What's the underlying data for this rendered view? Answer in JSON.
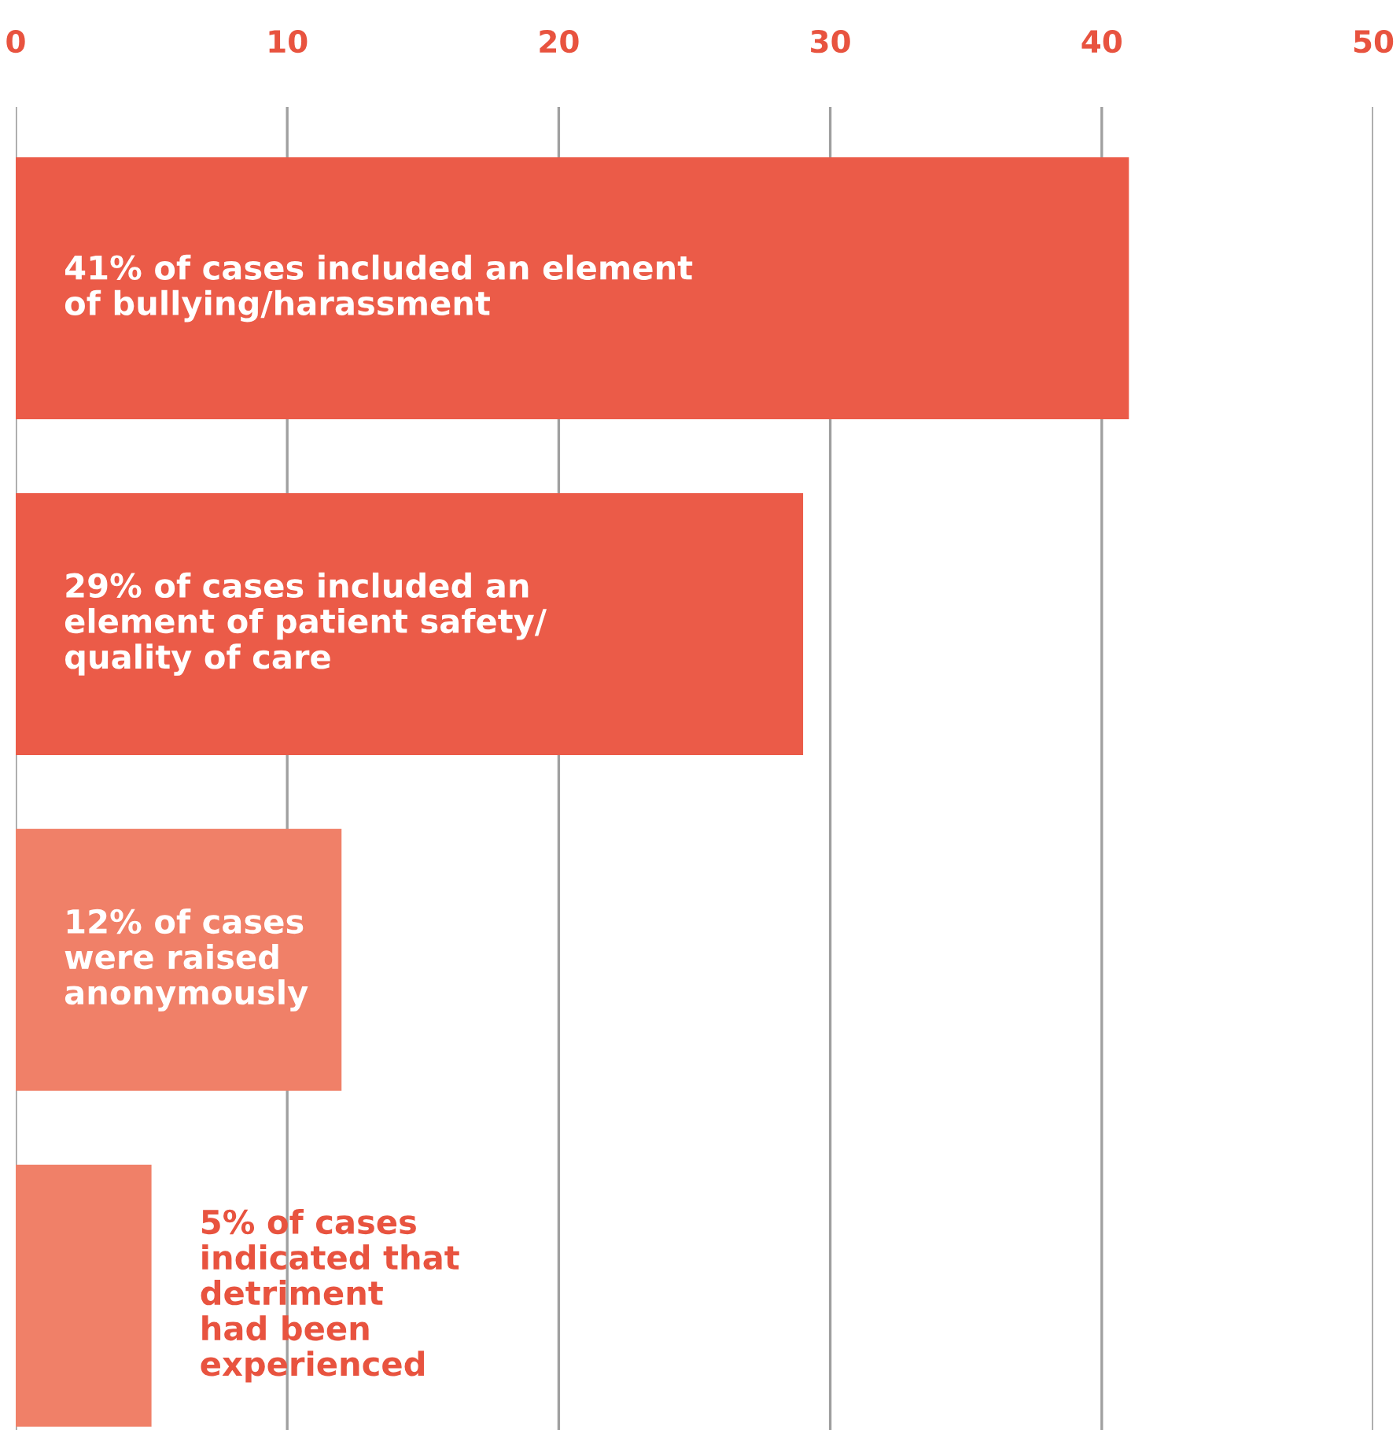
{
  "chart_data": {
    "type": "bar",
    "orientation": "horizontal",
    "categories": [
      "41% of cases included an element\nof bullying/harassment",
      "29% of cases included an\nelement of patient safety/\nquality of care",
      "12% of cases\nwere raised\nanonymously",
      "5% of cases\nindicated that\ndetriment\nhad been\nexperienced"
    ],
    "values": [
      41,
      29,
      12,
      5
    ],
    "colors": [
      "#eb5b48",
      "#eb5b48",
      "#f08068",
      "#f08068"
    ],
    "xlim": [
      0,
      50
    ],
    "xticks": [
      0,
      10,
      20,
      30,
      40,
      50
    ],
    "grid": "x",
    "tick_labels": "x"
  }
}
